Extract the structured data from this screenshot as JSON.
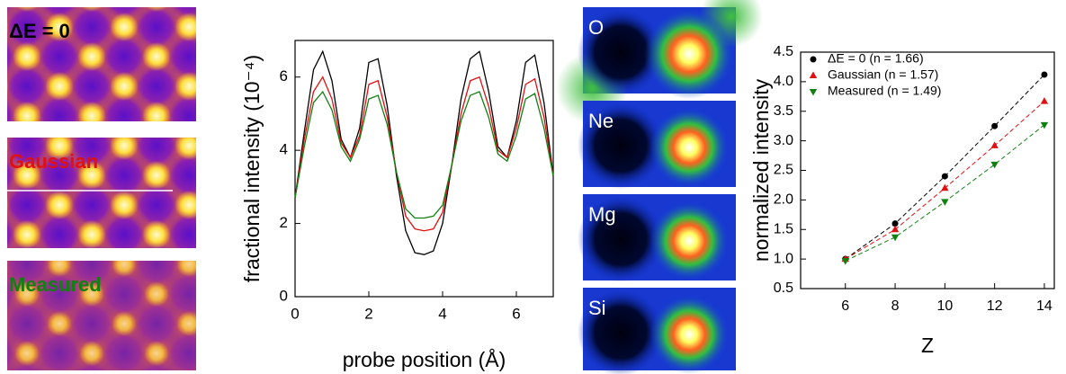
{
  "images": {
    "left": [
      "ΔE = 0",
      "Gaussian",
      "Measured"
    ],
    "left_colors": [
      "#000000",
      "#e01010",
      "#108010"
    ],
    "right": [
      "O",
      "Ne",
      "Mg",
      "Si"
    ]
  },
  "chart_data": [
    {
      "type": "line",
      "xlabel": "probe position (Å)",
      "ylabel": "fractional intensity (10⁻⁴)",
      "x": [
        0,
        0.25,
        0.5,
        0.75,
        1.0,
        1.25,
        1.5,
        1.75,
        2.0,
        2.25,
        2.5,
        2.75,
        3.0,
        3.25,
        3.5,
        3.75,
        4.0,
        4.25,
        4.5,
        4.75,
        5.0,
        5.25,
        5.5,
        5.75,
        6.0,
        6.25,
        6.5,
        6.75,
        7.0
      ],
      "series": [
        {
          "color": "#000000",
          "values": [
            2.7,
            4.5,
            6.2,
            6.7,
            5.9,
            4.3,
            3.8,
            4.6,
            6.4,
            6.5,
            5.2,
            3.3,
            1.8,
            1.2,
            1.15,
            1.25,
            2.0,
            3.6,
            5.4,
            6.5,
            6.7,
            5.6,
            4.1,
            3.8,
            4.8,
            6.4,
            6.6,
            5.3,
            3.3
          ]
        },
        {
          "color": "#e01010",
          "values": [
            2.7,
            4.3,
            5.6,
            6.0,
            5.4,
            4.2,
            3.8,
            4.4,
            5.8,
            5.9,
            4.9,
            3.4,
            2.2,
            1.85,
            1.8,
            1.85,
            2.3,
            3.6,
            5.0,
            5.9,
            6.0,
            5.2,
            4.0,
            3.8,
            4.6,
            5.8,
            5.95,
            4.9,
            3.3
          ]
        },
        {
          "color": "#108010",
          "values": [
            2.7,
            4.1,
            5.3,
            5.6,
            5.1,
            4.1,
            3.7,
            4.3,
            5.4,
            5.5,
            4.7,
            3.4,
            2.4,
            2.15,
            2.15,
            2.2,
            2.5,
            3.6,
            4.8,
            5.5,
            5.6,
            4.9,
            3.9,
            3.7,
            4.4,
            5.4,
            5.55,
            4.6,
            3.3
          ]
        }
      ],
      "xlim": [
        0,
        7
      ],
      "xticks": [
        0,
        2,
        4,
        6
      ],
      "ylim": [
        0,
        7
      ],
      "yticks": [
        0,
        2,
        4,
        6
      ]
    },
    {
      "type": "scatter",
      "xlabel": "Z",
      "ylabel": "normalized intensity",
      "x": [
        6,
        8,
        10,
        12,
        14
      ],
      "series": [
        {
          "name": "ΔE = 0 (n = 1.66)",
          "color": "#000000",
          "marker": "circle",
          "values": [
            1.0,
            1.6,
            2.4,
            3.25,
            4.12
          ]
        },
        {
          "name": "Gaussian (n = 1.57)",
          "color": "#e01010",
          "marker": "triangle-up",
          "values": [
            1.0,
            1.5,
            2.2,
            2.92,
            3.67
          ]
        },
        {
          "name": "Measured (n = 1.49)",
          "color": "#108010",
          "marker": "triangle-down",
          "values": [
            0.97,
            1.37,
            1.97,
            2.6,
            3.27
          ]
        }
      ],
      "linestyle": "dashed",
      "xlim": [
        4.2,
        14.4
      ],
      "xticks": [
        6,
        8,
        10,
        12,
        14
      ],
      "ylim": [
        0.5,
        4.5
      ],
      "yticks": [
        0.5,
        {
          "value": 1,
          "label": "1.0"
        },
        1.5,
        {
          "value": 2,
          "label": "2.0"
        },
        2.5,
        {
          "value": 3,
          "label": "3.0"
        },
        3.5,
        {
          "value": 4,
          "label": "4.0"
        },
        4.5
      ],
      "legend": "upper left"
    }
  ]
}
